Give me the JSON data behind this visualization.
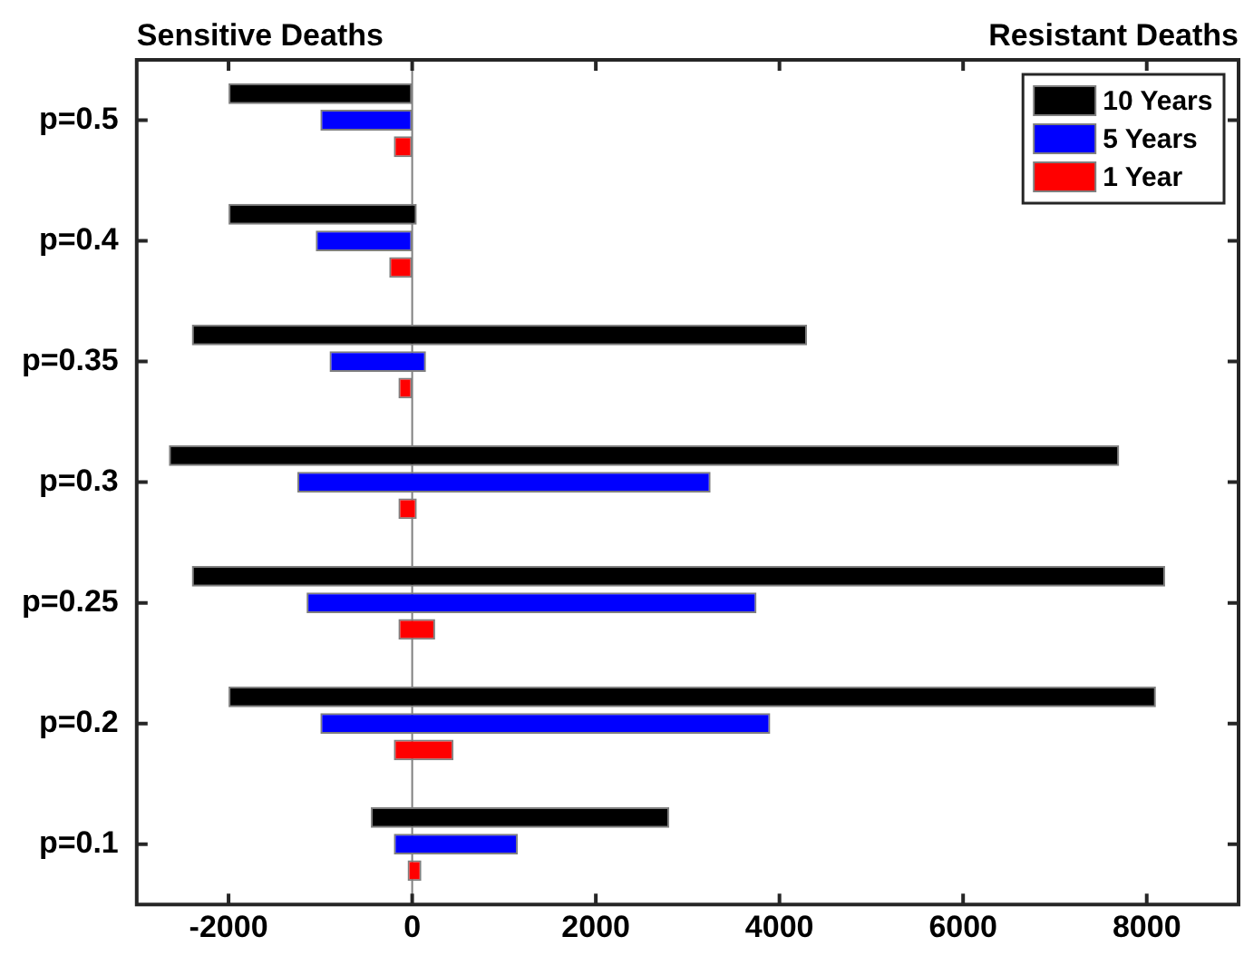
{
  "chart_data": {
    "type": "bar",
    "orientation": "horizontal",
    "annotations": [
      "Sensitive Deaths",
      "Resistant Deaths"
    ],
    "categories": [
      "p=0.5",
      "p=0.4",
      "p=0.35",
      "p=0.3",
      "p=0.25",
      "p=0.2",
      "p=0.1"
    ],
    "series": [
      {
        "name": "10 Years",
        "color": "#000000",
        "base": [
          -2000,
          -2000,
          -2400,
          -2650,
          -2400,
          -2000,
          -450
        ],
        "values": [
          2000,
          2050,
          6700,
          10350,
          10600,
          10100,
          3250
        ]
      },
      {
        "name": "5 Years",
        "color": "#0000ff",
        "base": [
          -1000,
          -1050,
          -900,
          -1250,
          -1150,
          -1000,
          -200
        ],
        "values": [
          1000,
          1050,
          1050,
          4500,
          4900,
          4900,
          1350
        ]
      },
      {
        "name": "1 Year",
        "color": "#ff0000",
        "base": [
          -200,
          -250,
          -150,
          -150,
          -150,
          -200,
          -50
        ],
        "values": [
          200,
          250,
          150,
          200,
          400,
          650,
          150
        ]
      }
    ],
    "xlim": [
      -3000,
      9000
    ],
    "xticks": [
      -2000,
      0,
      2000,
      4000,
      6000,
      8000
    ],
    "ref_lines": [
      {
        "axis": "x",
        "value": 0,
        "color": "#808080"
      }
    ],
    "legend": "top right",
    "grid": false
  }
}
